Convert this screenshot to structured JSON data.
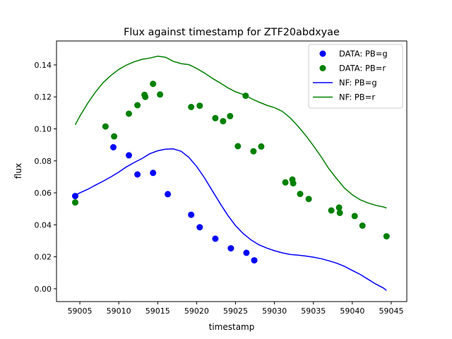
{
  "chart_data": {
    "type": "scatter",
    "title": "Flux against timestamp for ZTF20abdxyae",
    "xlabel": "timestamp",
    "ylabel": "flux",
    "xlim": [
      59002.0,
      59047.0
    ],
    "ylim": [
      -0.008,
      0.155
    ],
    "xticks": [
      59005,
      59010,
      59015,
      59020,
      59025,
      59030,
      59035,
      59040,
      59045
    ],
    "yticks": [
      0.0,
      0.02,
      0.04,
      0.06,
      0.08,
      0.1,
      0.12,
      0.14
    ],
    "grid": false,
    "legend_position": "top-right",
    "legend": [
      "DATA: PB=g",
      "DATA: PB=r",
      "NF: PB=g",
      "NF: PB=r"
    ],
    "colors": {
      "g": "#0000ff",
      "r": "#008000"
    },
    "series": [
      {
        "name": "DATA: PB=g",
        "kind": "points",
        "color": "#0000ff",
        "x": [
          59004.4,
          59009.3,
          59011.3,
          59012.4,
          59014.4,
          59016.3,
          59019.3,
          59020.4,
          59022.4,
          59024.4,
          59026.4,
          59027.4
        ],
        "y": [
          0.058,
          0.0885,
          0.0835,
          0.0715,
          0.0725,
          0.0592,
          0.0463,
          0.0385,
          0.0313,
          0.0253,
          0.0225,
          0.0178
        ]
      },
      {
        "name": "DATA: PB=r",
        "kind": "points",
        "color": "#008000",
        "x": [
          59004.4,
          59008.3,
          59009.4,
          59011.3,
          59012.4,
          59013.3,
          59013.4,
          59014.4,
          59015.3,
          59019.3,
          59020.4,
          59022.4,
          59023.4,
          59024.3,
          59025.3,
          59026.3,
          59027.3,
          59028.3,
          59031.4,
          59032.3,
          59032.4,
          59033.3,
          59034.4,
          59037.3,
          59038.3,
          59038.4,
          59040.3,
          59041.3,
          59044.4
        ],
        "y": [
          0.054,
          0.1015,
          0.0953,
          0.1095,
          0.1148,
          0.1213,
          0.12,
          0.1282,
          0.1215,
          0.1137,
          0.1145,
          0.1067,
          0.1048,
          0.108,
          0.0892,
          0.1207,
          0.086,
          0.089,
          0.0665,
          0.0683,
          0.066,
          0.0593,
          0.0562,
          0.049,
          0.0508,
          0.0475,
          0.0455,
          0.0395,
          0.0328
        ]
      },
      {
        "name": "NF: PB=g",
        "kind": "line",
        "color": "#0000ff",
        "x": [
          59004.4,
          59005,
          59006,
          59007,
          59008,
          59009,
          59010,
          59011,
          59012,
          59013,
          59014,
          59015,
          59016,
          59017,
          59018,
          59019,
          59020,
          59021,
          59022,
          59023,
          59024,
          59025,
          59026,
          59027,
          59028,
          59029,
          59030,
          59031,
          59032,
          59033,
          59034,
          59035,
          59036,
          59037,
          59038,
          59039,
          59040,
          59041,
          59042,
          59043,
          59044,
          59044.4
        ],
        "y": [
          0.0585,
          0.06,
          0.0622,
          0.0648,
          0.0673,
          0.07,
          0.073,
          0.0763,
          0.079,
          0.0815,
          0.0845,
          0.0863,
          0.0873,
          0.0875,
          0.086,
          0.0822,
          0.0765,
          0.0695,
          0.0615,
          0.0535,
          0.046,
          0.0395,
          0.0345,
          0.0305,
          0.0275,
          0.0255,
          0.0238,
          0.0225,
          0.0215,
          0.021,
          0.0205,
          0.0198,
          0.0188,
          0.0175,
          0.016,
          0.014,
          0.0115,
          0.009,
          0.006,
          0.003,
          0.0005,
          -0.001
        ]
      },
      {
        "name": "NF: PB=r",
        "kind": "line",
        "color": "#008000",
        "x": [
          59004.4,
          59005,
          59006,
          59007,
          59008,
          59009,
          59010,
          59011,
          59012,
          59013,
          59014,
          59015,
          59016,
          59017,
          59018,
          59019,
          59020,
          59021,
          59022,
          59023,
          59024,
          59025,
          59026,
          59027,
          59028,
          59029,
          59030,
          59031,
          59032,
          59033,
          59034,
          59035,
          59036,
          59037,
          59038,
          59039,
          59040,
          59041,
          59042,
          59043,
          59044,
          59044.4
        ],
        "y": [
          0.1025,
          0.108,
          0.116,
          0.123,
          0.129,
          0.1335,
          0.1372,
          0.14,
          0.142,
          0.1435,
          0.1443,
          0.1455,
          0.1448,
          0.1423,
          0.1408,
          0.1402,
          0.1378,
          0.135,
          0.1317,
          0.1288,
          0.1257,
          0.1232,
          0.1215,
          0.119,
          0.1168,
          0.1148,
          0.1133,
          0.111,
          0.107,
          0.1018,
          0.096,
          0.0895,
          0.0825,
          0.075,
          0.0688,
          0.063,
          0.0588,
          0.0557,
          0.0537,
          0.0522,
          0.0512,
          0.0505
        ]
      }
    ]
  }
}
